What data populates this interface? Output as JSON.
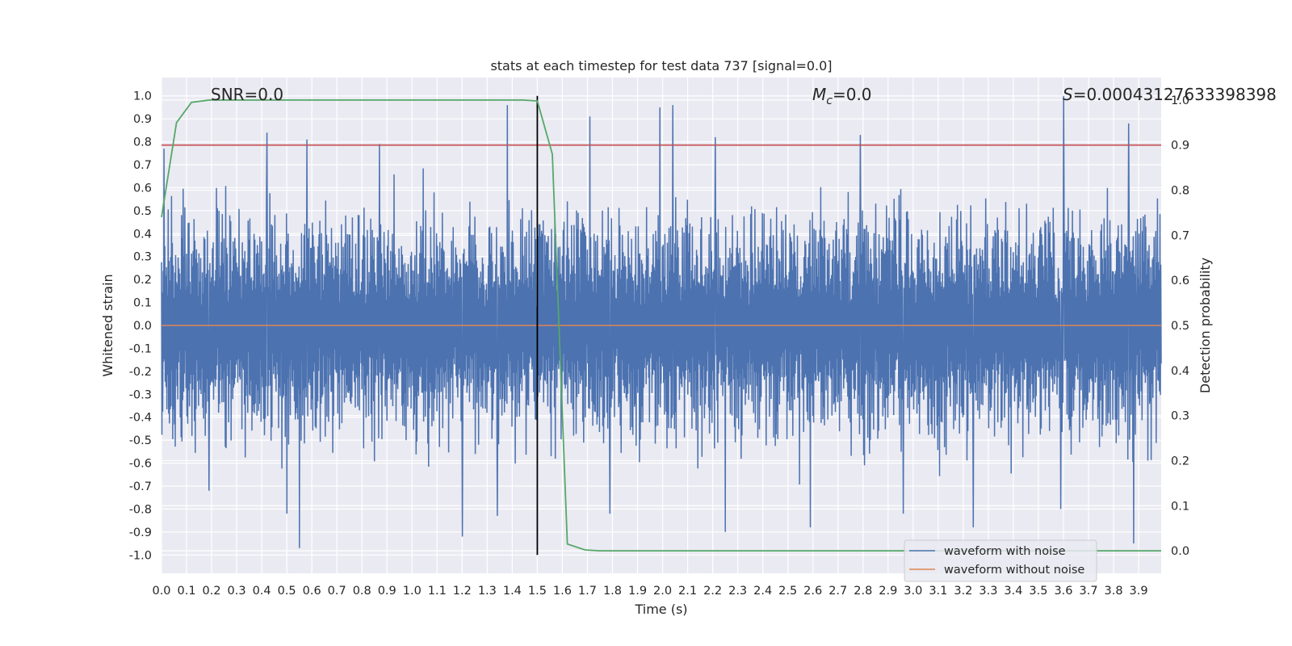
{
  "chart_data": {
    "type": "line",
    "title": "stats at each timestep for test data 737 [signal=0.0]",
    "xlabel": "Time (s)",
    "ylabel": "Whitened strain",
    "y2label": "Detection probability",
    "xlim": [
      0.0,
      3.99
    ],
    "ylim": [
      -1.08,
      1.08
    ],
    "y2lim": [
      -0.05,
      1.05
    ],
    "x_ticks": [
      "0.0",
      "0.1",
      "0.2",
      "0.3",
      "0.4",
      "0.5",
      "0.6",
      "0.7",
      "0.8",
      "0.9",
      "1.0",
      "1.1",
      "1.2",
      "1.3",
      "1.4",
      "1.5",
      "1.6",
      "1.7",
      "1.8",
      "1.9",
      "2.0",
      "2.1",
      "2.2",
      "2.3",
      "2.4",
      "2.5",
      "2.6",
      "2.7",
      "2.8",
      "2.9",
      "3.0",
      "3.1",
      "3.2",
      "3.3",
      "3.4",
      "3.5",
      "3.6",
      "3.7",
      "3.8",
      "3.9"
    ],
    "y_ticks": [
      "1.0",
      "0.9",
      "0.8",
      "0.7",
      "0.6",
      "0.5",
      "0.4",
      "0.3",
      "0.2",
      "0.1",
      "0.0",
      "-0.1",
      "-0.2",
      "-0.3",
      "-0.4",
      "-0.5",
      "-0.6",
      "-0.7",
      "-0.8",
      "-0.9",
      "-1.0"
    ],
    "y2_ticks": [
      "1.0",
      "0.9",
      "0.8",
      "0.7",
      "0.6",
      "0.5",
      "0.4",
      "0.3",
      "0.2",
      "0.1",
      "0.0"
    ],
    "grid": true,
    "annotations": {
      "snr": "SNR=0.0",
      "mc_symbol": "M",
      "mc_sub": "c",
      "mc_value": "=0.0",
      "s_symbol": "S",
      "s_value": "=0.00043127633398398"
    },
    "threshold": {
      "axis": "right",
      "value": 0.9,
      "color": "#c44e52"
    },
    "marker_line": {
      "x": 1.5,
      "ymin": -1.0,
      "ymax": 1.0,
      "color": "#000000"
    },
    "noise_params": {
      "n": 2400,
      "seed": 737,
      "envelope_low": 0.22,
      "envelope_high": 0.62
    },
    "series": [
      {
        "name": "waveform with noise",
        "axis": "left",
        "color": "#4c72b0",
        "style": "noise",
        "peaks": [
          [
            0.01,
            0.77
          ],
          [
            0.42,
            0.84
          ],
          [
            0.58,
            0.81
          ],
          [
            0.87,
            0.79
          ],
          [
            1.38,
            0.96
          ],
          [
            1.71,
            0.91
          ],
          [
            1.99,
            0.95
          ],
          [
            2.04,
            0.96
          ],
          [
            2.21,
            0.82
          ],
          [
            2.79,
            0.83
          ],
          [
            3.6,
            1.0
          ],
          [
            3.86,
            0.88
          ],
          [
            0.19,
            -0.72
          ],
          [
            0.55,
            -0.97
          ],
          [
            0.5,
            -0.82
          ],
          [
            1.2,
            -0.92
          ],
          [
            1.34,
            -0.83
          ],
          [
            1.79,
            -0.82
          ],
          [
            2.25,
            -0.9
          ],
          [
            2.59,
            -0.88
          ],
          [
            2.96,
            -0.82
          ],
          [
            3.24,
            -0.88
          ],
          [
            3.59,
            -0.8
          ],
          [
            3.88,
            -0.95
          ]
        ]
      },
      {
        "name": "waveform without noise",
        "axis": "left",
        "color": "#dd8452",
        "style": "line",
        "x": [
          0.0,
          3.99
        ],
        "y": [
          0.0,
          0.0
        ]
      },
      {
        "name": "",
        "axis": "right",
        "color": "#55a868",
        "style": "line",
        "x": [
          0.0,
          0.06,
          0.12,
          0.19,
          0.25,
          0.31,
          0.38,
          0.5,
          0.75,
          1.0,
          1.25,
          1.44,
          1.5,
          1.56,
          1.62,
          1.69,
          1.75,
          2.0,
          2.5,
          3.0,
          3.5,
          3.99
        ],
        "y": [
          0.74,
          0.95,
          0.995,
          1.0,
          1.0,
          1.0,
          1.0,
          1.0,
          1.0,
          1.0,
          1.0,
          1.0,
          0.998,
          0.88,
          0.015,
          0.002,
          0.0,
          0.0,
          0.0,
          0.0,
          0.0,
          0.0
        ]
      }
    ],
    "legend": {
      "placement": "lower-right",
      "entries": [
        "waveform with noise",
        "waveform without noise"
      ]
    }
  }
}
